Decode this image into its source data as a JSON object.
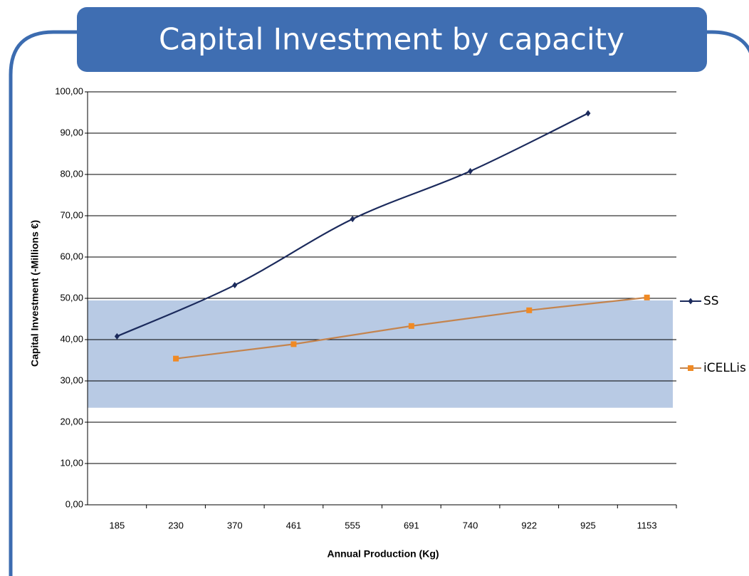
{
  "chart_data": {
    "type": "line",
    "title": "Capital Investment by capacity",
    "x_label": "Annual Production (Kg)",
    "y_label": "Capital Investment (-Millions €)",
    "categories": [
      "185",
      "230",
      "370",
      "461",
      "555",
      "691",
      "740",
      "922",
      "925",
      "1153"
    ],
    "series": [
      {
        "name": "SS",
        "color": "#1b2a5c",
        "marker": "diamond",
        "marker_color": "#1b2a5c",
        "smooth": true,
        "x": [
          "185",
          "370",
          "555",
          "740",
          "925"
        ],
        "values": [
          40.8,
          53.2,
          69.2,
          80.8,
          94.8
        ]
      },
      {
        "name": "iCELLis",
        "color": "#c4844e",
        "marker": "square",
        "marker_color": "#f08a24",
        "smooth": false,
        "x": [
          "230",
          "461",
          "691",
          "922",
          "1153"
        ],
        "values": [
          35.4,
          38.9,
          43.3,
          47.1,
          50.2
        ]
      }
    ],
    "ylim": [
      0,
      100
    ],
    "yticks": [
      {
        "value": 0,
        "label": "0,00"
      },
      {
        "value": 10,
        "label": "10,00"
      },
      {
        "value": 20,
        "label": "20,00"
      },
      {
        "value": 30,
        "label": "30,00"
      },
      {
        "value": 40,
        "label": "40,00"
      },
      {
        "value": 50,
        "label": "50,00"
      },
      {
        "value": 60,
        "label": "60,00"
      },
      {
        "value": 70,
        "label": "70,00"
      },
      {
        "value": 80,
        "label": "80,00"
      },
      {
        "value": 90,
        "label": "90,00"
      },
      {
        "value": 100,
        "label": "100,00"
      }
    ],
    "grid": true,
    "legend": "right",
    "band": {
      "range": [
        23.5,
        49.5
      ],
      "color": "#b8cae4"
    }
  }
}
